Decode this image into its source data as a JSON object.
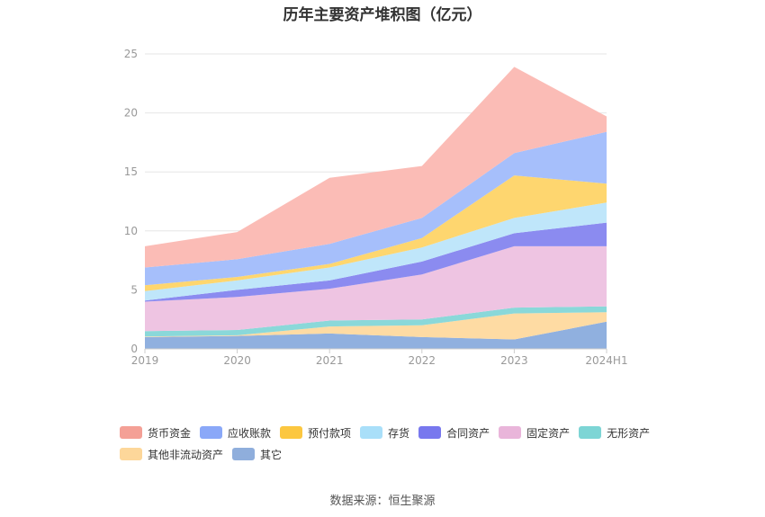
{
  "title": "历年主要资产堆积图（亿元）",
  "source": "数据来源：恒生聚源",
  "chart_data": {
    "type": "area",
    "stacked": true,
    "categories": [
      "2019",
      "2020",
      "2021",
      "2022",
      "2023",
      "2024H1"
    ],
    "ylim": [
      0,
      25
    ],
    "yticks": [
      0,
      5,
      10,
      15,
      20,
      25
    ],
    "grid": true,
    "legend_position": "bottom",
    "series": [
      {
        "name": "其它",
        "color": "#90B0DF",
        "values": [
          1.0,
          1.1,
          1.3,
          1.0,
          0.8,
          2.3
        ]
      },
      {
        "name": "其他非流动资产",
        "color": "#FEDBA3",
        "values": [
          0.05,
          0.05,
          0.6,
          1.0,
          2.2,
          0.8
        ]
      },
      {
        "name": "无形资产",
        "color": "#8AD8D9",
        "values": [
          0.45,
          0.45,
          0.5,
          0.5,
          0.5,
          0.5
        ]
      },
      {
        "name": "固定资产",
        "color": "#EEC4E2",
        "values": [
          2.5,
          2.8,
          2.7,
          3.8,
          5.2,
          5.1
        ]
      },
      {
        "name": "合同资产",
        "color": "#8B8BF0",
        "values": [
          0.1,
          0.6,
          0.7,
          1.1,
          1.1,
          2.0
        ]
      },
      {
        "name": "存货",
        "color": "#BFE6FA",
        "values": [
          0.8,
          0.8,
          1.1,
          1.2,
          1.3,
          1.7
        ]
      },
      {
        "name": "预付款项",
        "color": "#FED66F",
        "values": [
          0.5,
          0.3,
          0.3,
          0.8,
          3.6,
          1.6
        ]
      },
      {
        "name": "应收账款",
        "color": "#A6BFFB",
        "values": [
          1.5,
          1.5,
          1.7,
          1.7,
          1.9,
          4.4
        ]
      },
      {
        "name": "货币资金",
        "color": "#FBBCB6",
        "values": [
          1.8,
          2.3,
          5.6,
          4.4,
          7.3,
          1.3
        ]
      }
    ]
  },
  "legend": [
    {
      "label": "货币资金",
      "color": "#F4A096"
    },
    {
      "label": "应收账款",
      "color": "#8AA8F8"
    },
    {
      "label": "预付款项",
      "color": "#FCC740"
    },
    {
      "label": "存货",
      "color": "#A9DFF9"
    },
    {
      "label": "合同资产",
      "color": "#7878EE"
    },
    {
      "label": "固定资产",
      "color": "#E9B5DA"
    },
    {
      "label": "无形资产",
      "color": "#7DD5D5"
    },
    {
      "label": "其他非流动资产",
      "color": "#FDD79A"
    },
    {
      "label": "其它",
      "color": "#8FAEDC"
    }
  ]
}
